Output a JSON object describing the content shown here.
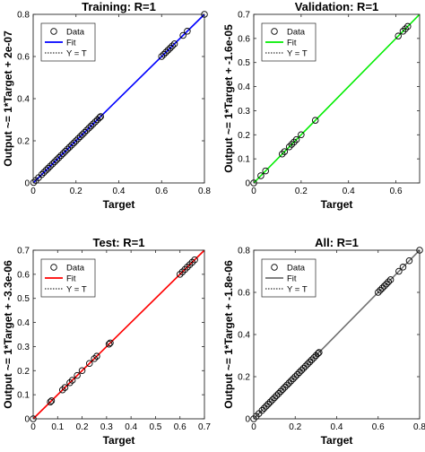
{
  "chart_data": [
    {
      "type": "scatter",
      "title": "Training: R=1",
      "xlabel": "Target",
      "ylabel": "Output ~= 1*Target + 2e-07",
      "xlim": [
        0,
        0.8
      ],
      "ylim": [
        0,
        0.8
      ],
      "xticks": [
        "0",
        "0.2",
        "0.4",
        "0.6",
        "0.8"
      ],
      "yticks": [
        "0",
        "0.2",
        "0.4",
        "0.6",
        "0.8"
      ],
      "fit_color": "#0000ff",
      "legend": [
        "Data",
        "Fit",
        "Y = T"
      ],
      "legend_position": "top-left",
      "fit": {
        "slope": 1,
        "intercept": 0
      },
      "points": [
        [
          0.002,
          0.002
        ],
        [
          0.012,
          0.012
        ],
        [
          0.025,
          0.025
        ],
        [
          0.04,
          0.04
        ],
        [
          0.05,
          0.05
        ],
        [
          0.06,
          0.06
        ],
        [
          0.07,
          0.07
        ],
        [
          0.08,
          0.08
        ],
        [
          0.09,
          0.09
        ],
        [
          0.1,
          0.1
        ],
        [
          0.11,
          0.11
        ],
        [
          0.12,
          0.12
        ],
        [
          0.13,
          0.13
        ],
        [
          0.14,
          0.14
        ],
        [
          0.15,
          0.15
        ],
        [
          0.16,
          0.16
        ],
        [
          0.17,
          0.17
        ],
        [
          0.18,
          0.18
        ],
        [
          0.19,
          0.19
        ],
        [
          0.2,
          0.2
        ],
        [
          0.21,
          0.21
        ],
        [
          0.22,
          0.22
        ],
        [
          0.23,
          0.23
        ],
        [
          0.24,
          0.24
        ],
        [
          0.25,
          0.25
        ],
        [
          0.26,
          0.26
        ],
        [
          0.27,
          0.27
        ],
        [
          0.28,
          0.28
        ],
        [
          0.29,
          0.29
        ],
        [
          0.3,
          0.3
        ],
        [
          0.31,
          0.31
        ],
        [
          0.315,
          0.315
        ],
        [
          0.6,
          0.6
        ],
        [
          0.61,
          0.61
        ],
        [
          0.62,
          0.62
        ],
        [
          0.63,
          0.63
        ],
        [
          0.64,
          0.64
        ],
        [
          0.65,
          0.65
        ],
        [
          0.66,
          0.66
        ],
        [
          0.7,
          0.7
        ],
        [
          0.72,
          0.72
        ],
        [
          0.8,
          0.8
        ]
      ]
    },
    {
      "type": "scatter",
      "title": "Validation: R=1",
      "xlabel": "Target",
      "ylabel": "Output ~= 1*Target + -1.6e-05",
      "xlim": [
        0,
        0.7
      ],
      "ylim": [
        0,
        0.7
      ],
      "xticks": [
        "0",
        "0.2",
        "0.4",
        "0.6"
      ],
      "yticks": [
        "0",
        "0.1",
        "0.2",
        "0.3",
        "0.4",
        "0.5",
        "0.6",
        "0.7"
      ],
      "fit_color": "#00ee00",
      "legend": [
        "Data",
        "Fit",
        "Y = T"
      ],
      "legend_position": "top-left",
      "fit": {
        "slope": 1,
        "intercept": 0
      },
      "points": [
        [
          0.0,
          0.0
        ],
        [
          0.03,
          0.03
        ],
        [
          0.05,
          0.05
        ],
        [
          0.12,
          0.12
        ],
        [
          0.13,
          0.13
        ],
        [
          0.15,
          0.15
        ],
        [
          0.16,
          0.16
        ],
        [
          0.17,
          0.17
        ],
        [
          0.18,
          0.18
        ],
        [
          0.2,
          0.2
        ],
        [
          0.26,
          0.26
        ],
        [
          0.61,
          0.61
        ],
        [
          0.63,
          0.63
        ],
        [
          0.64,
          0.64
        ],
        [
          0.65,
          0.65
        ]
      ]
    },
    {
      "type": "scatter",
      "title": "Test: R=1",
      "xlabel": "Target",
      "ylabel": "Output ~= 1*Target + -3.3e-06",
      "xlim": [
        0,
        0.7
      ],
      "ylim": [
        0,
        0.7
      ],
      "xticks": [
        "0",
        "0.1",
        "0.2",
        "0.3",
        "0.4",
        "0.5",
        "0.6",
        "0.7"
      ],
      "yticks": [
        "0",
        "0.1",
        "0.2",
        "0.3",
        "0.4",
        "0.5",
        "0.6",
        "0.7"
      ],
      "fit_color": "#ff0000",
      "legend": [
        "Data",
        "Fit",
        "Y = T"
      ],
      "legend_position": "top-left",
      "fit": {
        "slope": 1,
        "intercept": 0
      },
      "points": [
        [
          0.0,
          0.0
        ],
        [
          0.07,
          0.07
        ],
        [
          0.075,
          0.075
        ],
        [
          0.12,
          0.12
        ],
        [
          0.13,
          0.13
        ],
        [
          0.15,
          0.15
        ],
        [
          0.16,
          0.16
        ],
        [
          0.18,
          0.18
        ],
        [
          0.2,
          0.2
        ],
        [
          0.23,
          0.23
        ],
        [
          0.25,
          0.25
        ],
        [
          0.26,
          0.26
        ],
        [
          0.31,
          0.31
        ],
        [
          0.315,
          0.315
        ],
        [
          0.6,
          0.6
        ],
        [
          0.61,
          0.61
        ],
        [
          0.62,
          0.62
        ],
        [
          0.63,
          0.63
        ],
        [
          0.64,
          0.64
        ],
        [
          0.65,
          0.65
        ],
        [
          0.66,
          0.66
        ]
      ]
    },
    {
      "type": "scatter",
      "title": "All: R=1",
      "xlabel": "Target",
      "ylabel": "Output ~= 1*Target + -1.8e-06",
      "xlim": [
        0,
        0.8
      ],
      "ylim": [
        0,
        0.8
      ],
      "xticks": [
        "0",
        "0.2",
        "0.4",
        "0.6",
        "0.8"
      ],
      "yticks": [
        "0",
        "0.2",
        "0.4",
        "0.6",
        "0.8"
      ],
      "fit_color": "#707070",
      "legend": [
        "Data",
        "Fit",
        "Y = T"
      ],
      "legend_position": "top-left",
      "fit": {
        "slope": 1,
        "intercept": 0
      },
      "points": [
        [
          0.0,
          0.0
        ],
        [
          0.012,
          0.012
        ],
        [
          0.025,
          0.025
        ],
        [
          0.04,
          0.04
        ],
        [
          0.05,
          0.05
        ],
        [
          0.06,
          0.06
        ],
        [
          0.07,
          0.07
        ],
        [
          0.08,
          0.08
        ],
        [
          0.09,
          0.09
        ],
        [
          0.1,
          0.1
        ],
        [
          0.11,
          0.11
        ],
        [
          0.12,
          0.12
        ],
        [
          0.13,
          0.13
        ],
        [
          0.14,
          0.14
        ],
        [
          0.15,
          0.15
        ],
        [
          0.16,
          0.16
        ],
        [
          0.17,
          0.17
        ],
        [
          0.18,
          0.18
        ],
        [
          0.19,
          0.19
        ],
        [
          0.2,
          0.2
        ],
        [
          0.21,
          0.21
        ],
        [
          0.22,
          0.22
        ],
        [
          0.23,
          0.23
        ],
        [
          0.24,
          0.24
        ],
        [
          0.25,
          0.25
        ],
        [
          0.26,
          0.26
        ],
        [
          0.27,
          0.27
        ],
        [
          0.28,
          0.28
        ],
        [
          0.29,
          0.29
        ],
        [
          0.3,
          0.3
        ],
        [
          0.31,
          0.31
        ],
        [
          0.315,
          0.315
        ],
        [
          0.6,
          0.6
        ],
        [
          0.61,
          0.61
        ],
        [
          0.62,
          0.62
        ],
        [
          0.63,
          0.63
        ],
        [
          0.64,
          0.64
        ],
        [
          0.65,
          0.65
        ],
        [
          0.66,
          0.66
        ],
        [
          0.7,
          0.7
        ],
        [
          0.72,
          0.72
        ],
        [
          0.75,
          0.75
        ],
        [
          0.8,
          0.8
        ]
      ]
    }
  ]
}
